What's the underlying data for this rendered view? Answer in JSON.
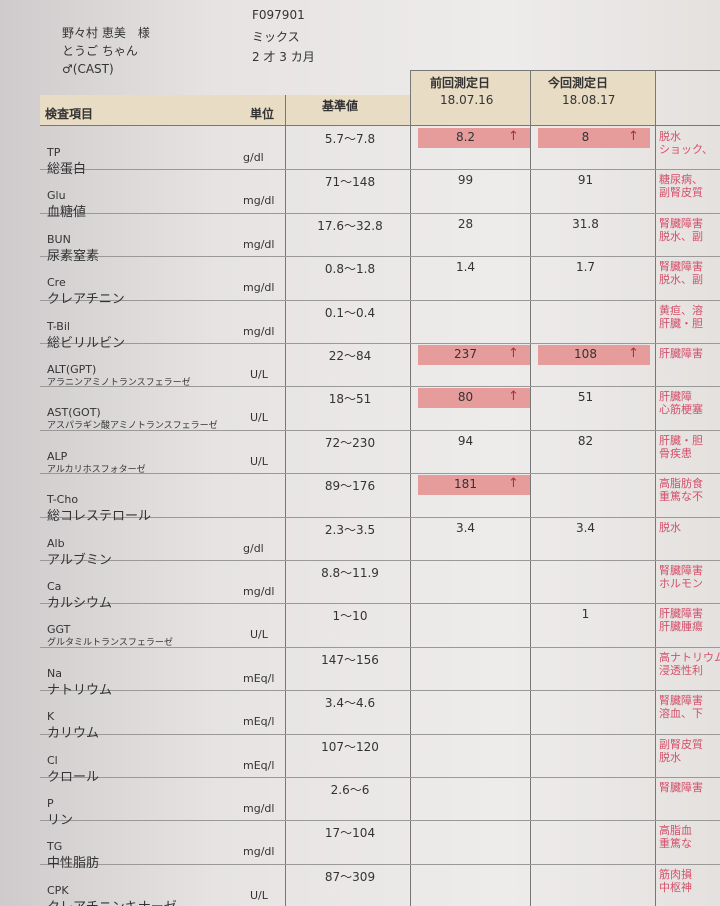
{
  "patient": {
    "owner": "野々村 恵美　様",
    "id": "F097901",
    "name": "とうご ちゃん",
    "breed": "ミックス",
    "sex": "♂(CAST)",
    "age": "2 才 3 カ月"
  },
  "table": {
    "headers": {
      "item": "検査項目",
      "unit": "単位",
      "range": "基準値",
      "prev_label": "前回測定日",
      "prev_date": "18.07.16",
      "curr_label": "今回測定日",
      "curr_date": "18.08.17"
    },
    "rows": [
      {
        "code": "TP",
        "name": "総蛋白",
        "unit": "g/dl",
        "range": "5.7～7.8",
        "prev": "8.2",
        "prev_flag": "↑",
        "curr": "8",
        "curr_flag": "↑",
        "note": [
          "脱水",
          "ショック、"
        ]
      },
      {
        "code": "Glu",
        "name": "血糖値",
        "unit": "mg/dl",
        "range": "71～148",
        "prev": "99",
        "curr": "91",
        "note": [
          "糖尿病、",
          "副腎皮質"
        ]
      },
      {
        "code": "BUN",
        "name": "尿素窒素",
        "unit": "mg/dl",
        "range": "17.6～32.8",
        "prev": "28",
        "curr": "31.8",
        "note": [
          "腎臓障害",
          "脱水、副"
        ]
      },
      {
        "code": "Cre",
        "name": "クレアチニン",
        "unit": "mg/dl",
        "range": "0.8～1.8",
        "prev": "1.4",
        "curr": "1.7",
        "note": [
          "腎臓障害",
          "脱水、副"
        ]
      },
      {
        "code": "T-Bil",
        "name": "総ビリルビン",
        "unit": "mg/dl",
        "range": "0.1～0.4",
        "note": [
          "黄疸、溶",
          "肝臓・胆"
        ]
      },
      {
        "code": "ALT(GPT)",
        "name": "アラニンアミノトランスフェラーゼ",
        "unit": "U/L",
        "range": "22～84",
        "prev": "237",
        "prev_flag": "↑",
        "curr": "108",
        "curr_flag": "↑",
        "note": [
          "肝臓障害"
        ]
      },
      {
        "code": "AST(GOT)",
        "name": "アスパラギン酸アミノトランスフェラーゼ",
        "unit": "U/L",
        "range": "18～51",
        "prev": "80",
        "prev_flag": "↑",
        "curr": "51",
        "note": [
          "肝臓障",
          "心筋梗塞"
        ]
      },
      {
        "code": "ALP",
        "name": "アルカリホスフォターゼ",
        "unit": "U/L",
        "range": "72～230",
        "prev": "94",
        "curr": "82",
        "note": [
          "肝臓・胆",
          "骨疾患"
        ]
      },
      {
        "code": "T-Cho",
        "name": "総コレステロール",
        "range": "89～176",
        "prev": "181",
        "prev_flag": "↑",
        "note": [
          "高脂肪食",
          "重篤な不"
        ]
      },
      {
        "code": "Alb",
        "name": "アルブミン",
        "unit": "g/dl",
        "range": "2.3～3.5",
        "prev": "3.4",
        "curr": "3.4",
        "note": [
          "脱水"
        ]
      },
      {
        "code": "Ca",
        "name": "カルシウム",
        "unit": "mg/dl",
        "range": "8.8～11.9",
        "note": [
          "腎臓障害",
          "ホルモン"
        ]
      },
      {
        "code": "GGT",
        "name": "グルタミルトランスフェラーゼ",
        "unit": "U/L",
        "range": "1～10",
        "curr": "1",
        "note": [
          "肝臓障害",
          "肝臓腫瘍"
        ]
      },
      {
        "code": "Na",
        "name": "ナトリウム",
        "unit": "mEq/l",
        "range": "147～156",
        "note": [
          "高ナトリウム",
          "浸透性利"
        ]
      },
      {
        "code": "K",
        "name": "カリウム",
        "unit": "mEq/l",
        "range": "3.4～4.6",
        "note": [
          "腎臓障害",
          "溶血、下"
        ]
      },
      {
        "code": "Cl",
        "name": "クロール",
        "unit": "mEq/l",
        "range": "107～120",
        "note": [
          "副腎皮質",
          "脱水"
        ]
      },
      {
        "code": "P",
        "name": "リン",
        "unit": "mg/dl",
        "range": "2.6～6",
        "note": [
          "腎臓障害"
        ]
      },
      {
        "code": "TG",
        "name": "中性脂肪",
        "unit": "mg/dl",
        "range": "17～104",
        "note": [
          "高脂血",
          "重篤な"
        ]
      },
      {
        "code": "CPK",
        "name": "クレアチニンキナーゼ",
        "unit": "U/L",
        "range": "87～309",
        "note": [
          "筋肉損",
          "中枢神"
        ]
      }
    ]
  }
}
